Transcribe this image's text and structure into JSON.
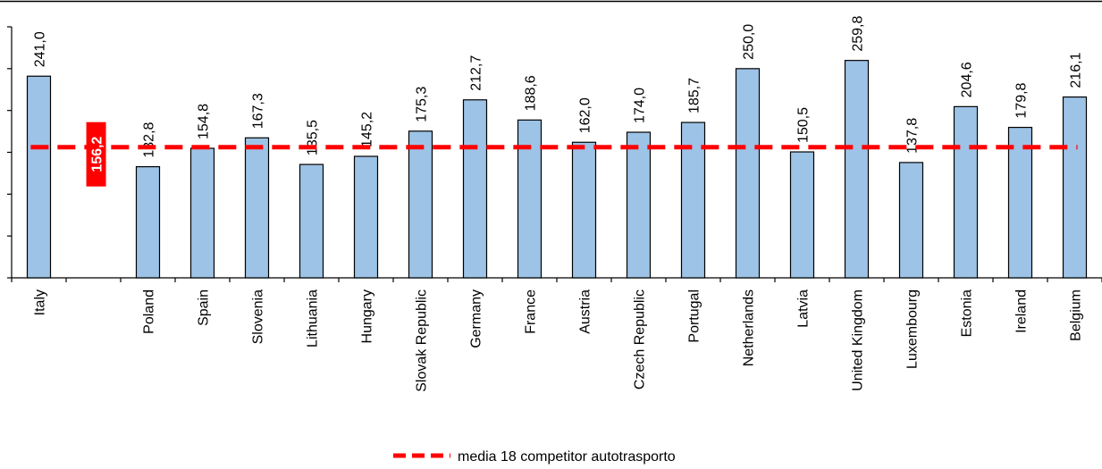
{
  "chart_data": {
    "type": "bar",
    "categories": [
      "Italy",
      "",
      "Poland",
      "Spain",
      "Slovenia",
      "Lithuania",
      "Hungary",
      "Slovak Republic",
      "Germany",
      "France",
      "Austria",
      "Czech Republic",
      "Portugal",
      "Netherlands",
      "Latvia",
      "United Kingdom",
      "Luxembourg",
      "Estonia",
      "Ireland",
      "Belgium"
    ],
    "values": [
      241.0,
      null,
      132.8,
      154.8,
      167.3,
      135.5,
      145.2,
      175.3,
      212.7,
      188.6,
      162.0,
      174.0,
      185.7,
      250.0,
      150.5,
      259.8,
      137.8,
      204.6,
      179.8,
      216.1
    ],
    "value_labels": [
      "241,0",
      "",
      "132,8",
      "154,8",
      "167,3",
      "135,5",
      "145,2",
      "175,3",
      "212,7",
      "188,6",
      "162,0",
      "174,0",
      "185,7",
      "250,0",
      "150,5",
      "259,8",
      "137,8",
      "204,6",
      "179,8",
      "216,1"
    ],
    "reference_line": {
      "value": 156.2,
      "label": "156,2",
      "legend": "media 18 competitor autotrasporto",
      "style": "dashed"
    },
    "ylim": [
      0,
      300
    ],
    "grid": false,
    "legend_position": "bottom-center",
    "colors": {
      "bar_fill": "#9dc3e6",
      "bar_stroke": "#000000",
      "reference_line": "#ff0000",
      "reference_label_bg": "#ff0000",
      "reference_label_text": "#ffffff"
    },
    "title": "",
    "xlabel": "",
    "ylabel": ""
  }
}
